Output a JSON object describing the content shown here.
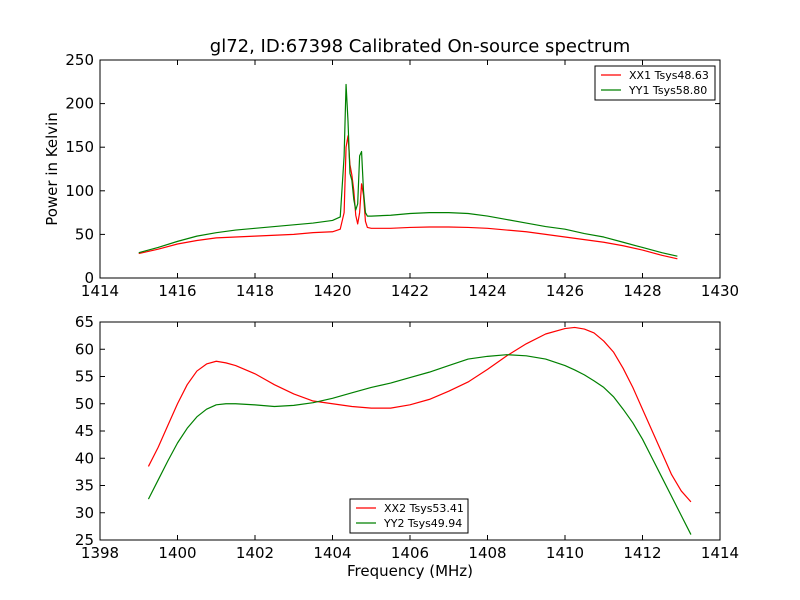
{
  "chart_data": [
    {
      "type": "line",
      "title": "gl72, ID:67398 Calibrated On-source spectrum",
      "xlabel": "",
      "ylabel": "Power in Kelvin",
      "xlim": [
        1414,
        1430
      ],
      "ylim": [
        0,
        250
      ],
      "xticks": [
        "1414",
        "1416",
        "1418",
        "1420",
        "1422",
        "1424",
        "1426",
        "1428",
        "1430"
      ],
      "yticks": [
        "0",
        "50",
        "100",
        "150",
        "200",
        "250"
      ],
      "grid": false,
      "legend": "top-right",
      "series": [
        {
          "name": "XX1 Tsys48.63",
          "color": "#ff0000",
          "x": [
            1415.0,
            1415.5,
            1416.0,
            1416.5,
            1417.0,
            1417.5,
            1418.0,
            1418.5,
            1419.0,
            1419.5,
            1420.0,
            1420.2,
            1420.3,
            1420.35,
            1420.4,
            1420.45,
            1420.5,
            1420.55,
            1420.6,
            1420.65,
            1420.7,
            1420.75,
            1420.8,
            1420.85,
            1420.9,
            1421.0,
            1421.5,
            1422.0,
            1422.5,
            1423.0,
            1423.5,
            1424.0,
            1424.5,
            1425.0,
            1425.5,
            1426.0,
            1426.5,
            1427.0,
            1427.5,
            1428.0,
            1428.5,
            1428.9
          ],
          "y": [
            28,
            33,
            39,
            43,
            46,
            47,
            48,
            49,
            50,
            52,
            53,
            56,
            75,
            150,
            163,
            130,
            118,
            100,
            72,
            62,
            75,
            108,
            95,
            65,
            58,
            57,
            57,
            58,
            58.5,
            58.5,
            58,
            57,
            55,
            53,
            50,
            47,
            44,
            41,
            37,
            32,
            26,
            22
          ]
        },
        {
          "name": "YY1 Tsys58.80",
          "color": "#008000",
          "x": [
            1415.0,
            1415.5,
            1416.0,
            1416.5,
            1417.0,
            1417.5,
            1418.0,
            1418.5,
            1419.0,
            1419.5,
            1420.0,
            1420.2,
            1420.3,
            1420.35,
            1420.4,
            1420.45,
            1420.5,
            1420.55,
            1420.6,
            1420.65,
            1420.7,
            1420.75,
            1420.8,
            1420.85,
            1420.9,
            1421.0,
            1421.5,
            1422.0,
            1422.5,
            1423.0,
            1423.5,
            1424.0,
            1424.5,
            1425.0,
            1425.5,
            1426.0,
            1426.5,
            1427.0,
            1427.5,
            1428.0,
            1428.5,
            1428.9
          ],
          "y": [
            29,
            35,
            42,
            48,
            52,
            55,
            57,
            59,
            61,
            63,
            66,
            70,
            140,
            222,
            180,
            120,
            112,
            90,
            78,
            85,
            140,
            145,
            100,
            75,
            71,
            71,
            72,
            74,
            75,
            75,
            74,
            71,
            67,
            63,
            59,
            56,
            51,
            47,
            41,
            35,
            29,
            25
          ]
        }
      ]
    },
    {
      "type": "line",
      "title": "",
      "xlabel": "Frequency (MHz)",
      "ylabel": "",
      "xlim": [
        1398,
        1414
      ],
      "ylim": [
        25,
        65
      ],
      "xticks": [
        "1398",
        "1400",
        "1402",
        "1404",
        "1406",
        "1408",
        "1410",
        "1412",
        "1414"
      ],
      "yticks": [
        "25",
        "30",
        "35",
        "40",
        "45",
        "50",
        "55",
        "60",
        "65"
      ],
      "grid": false,
      "legend": "bottom-center",
      "series": [
        {
          "name": "XX2 Tsys53.41",
          "color": "#ff0000",
          "x": [
            1399.25,
            1399.5,
            1399.75,
            1400.0,
            1400.25,
            1400.5,
            1400.75,
            1401.0,
            1401.25,
            1401.5,
            1402.0,
            1402.5,
            1403.0,
            1403.5,
            1404.0,
            1404.5,
            1405.0,
            1405.5,
            1406.0,
            1406.5,
            1407.0,
            1407.5,
            1408.0,
            1408.5,
            1409.0,
            1409.5,
            1410.0,
            1410.25,
            1410.5,
            1410.75,
            1411.0,
            1411.25,
            1411.5,
            1411.75,
            1412.0,
            1412.25,
            1412.5,
            1412.75,
            1413.0,
            1413.25
          ],
          "y": [
            38.5,
            42,
            46,
            50,
            53.5,
            56,
            57.3,
            57.8,
            57.5,
            57,
            55.5,
            53.5,
            51.8,
            50.5,
            50,
            49.5,
            49.2,
            49.2,
            49.8,
            50.8,
            52.3,
            54,
            56.3,
            58.8,
            61,
            62.8,
            63.8,
            64,
            63.7,
            63,
            61.5,
            59.5,
            56.5,
            53,
            49,
            45,
            41,
            37,
            34,
            32
          ]
        },
        {
          "name": "YY2 Tsys49.94",
          "color": "#008000",
          "x": [
            1399.25,
            1399.5,
            1399.75,
            1400.0,
            1400.25,
            1400.5,
            1400.75,
            1401.0,
            1401.25,
            1401.5,
            1402.0,
            1402.5,
            1403.0,
            1403.5,
            1404.0,
            1404.5,
            1405.0,
            1405.5,
            1406.0,
            1406.5,
            1407.0,
            1407.5,
            1408.0,
            1408.5,
            1409.0,
            1409.5,
            1410.0,
            1410.25,
            1410.5,
            1410.75,
            1411.0,
            1411.25,
            1411.5,
            1411.75,
            1412.0,
            1412.25,
            1412.5,
            1412.75,
            1413.0,
            1413.25
          ],
          "y": [
            32.5,
            36,
            39.5,
            42.8,
            45.5,
            47.6,
            49,
            49.8,
            50,
            50,
            49.8,
            49.5,
            49.7,
            50.2,
            51,
            52,
            53,
            53.8,
            54.8,
            55.8,
            57,
            58.2,
            58.7,
            59,
            58.8,
            58.2,
            57,
            56.2,
            55.3,
            54.2,
            53,
            51.3,
            49,
            46.5,
            43.5,
            40,
            36.5,
            33,
            29.5,
            26
          ]
        }
      ]
    }
  ]
}
